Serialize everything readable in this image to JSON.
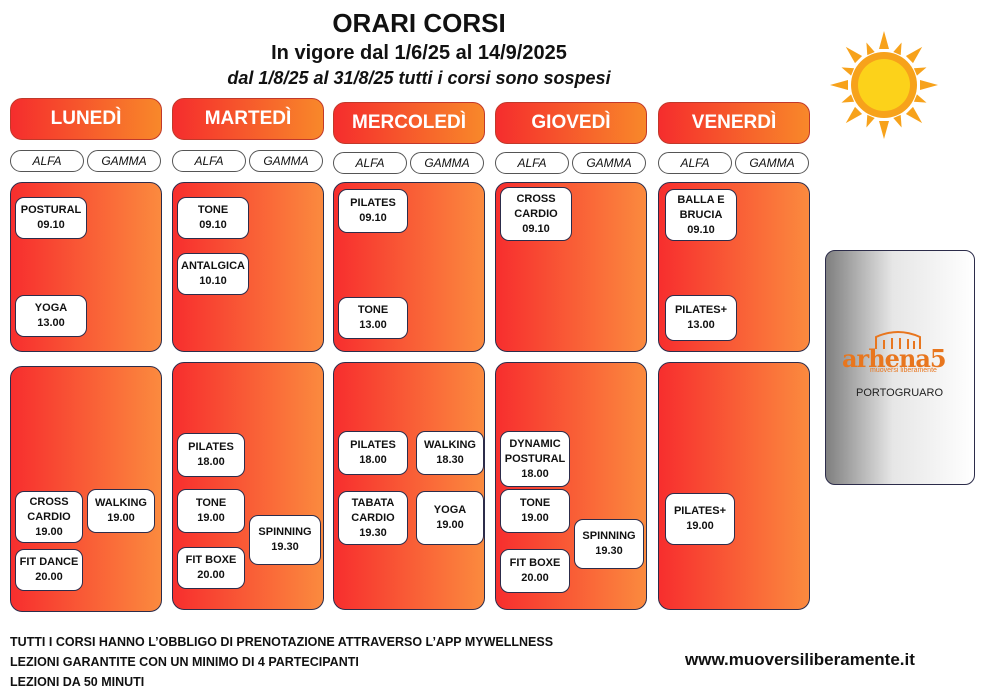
{
  "header": {
    "title": "ORARI CORSI",
    "validity": "In vigore dal 1/6/25 al 14/9/2025",
    "notice": "dal 1/8/25 al 31/8/25 tutti i corsi sono sospesi"
  },
  "rooms": [
    "ALFA",
    "GAMMA"
  ],
  "days": [
    {
      "name": "LUNEDÌ",
      "morning": [
        {
          "lines": [
            "POSTURAL",
            "09.10"
          ]
        },
        {
          "lines": [
            "YOGA",
            "13.00"
          ]
        }
      ],
      "evening": [
        {
          "lines": [
            "CROSS",
            "CARDIO",
            "19.00"
          ]
        },
        {
          "lines": [
            "WALKING",
            "19.00"
          ]
        },
        {
          "lines": [
            "FIT DANCE",
            "20.00"
          ]
        }
      ]
    },
    {
      "name": "MARTEDÌ",
      "morning": [
        {
          "lines": [
            "TONE",
            "09.10"
          ]
        },
        {
          "lines": [
            "ANTALGICA",
            "10.10"
          ]
        }
      ],
      "evening": [
        {
          "lines": [
            "PILATES",
            "18.00"
          ]
        },
        {
          "lines": [
            "TONE",
            "19.00"
          ]
        },
        {
          "lines": [
            "SPINNING",
            "19.30"
          ]
        },
        {
          "lines": [
            "FIT BOXE",
            "20.00"
          ]
        }
      ]
    },
    {
      "name": "MERCOLEDÌ",
      "morning": [
        {
          "lines": [
            "PILATES",
            "09.10"
          ]
        },
        {
          "lines": [
            "TONE",
            "13.00"
          ]
        }
      ],
      "evening": [
        {
          "lines": [
            "PILATES",
            "18.00"
          ]
        },
        {
          "lines": [
            "WALKING",
            "18.30"
          ]
        },
        {
          "lines": [
            "TABATA",
            "CARDIO",
            "19.30"
          ]
        },
        {
          "lines": [
            "YOGA",
            "19.00"
          ]
        }
      ]
    },
    {
      "name": "GIOVEDÌ",
      "morning": [
        {
          "lines": [
            "CROSS",
            "CARDIO",
            "09.10"
          ]
        }
      ],
      "evening": [
        {
          "lines": [
            "DYNAMIC",
            "POSTURAL",
            "18.00"
          ]
        },
        {
          "lines": [
            "TONE",
            "19.00"
          ]
        },
        {
          "lines": [
            "SPINNING",
            "19.30"
          ]
        },
        {
          "lines": [
            "FIT BOXE",
            "20.00"
          ]
        }
      ]
    },
    {
      "name": "VENERDÌ",
      "morning": [
        {
          "lines": [
            "BALLA E",
            "BRUCIA",
            "09.10"
          ]
        },
        {
          "lines": [
            "PILATES+",
            "13.00"
          ]
        }
      ],
      "evening": [
        {
          "lines": [
            "PILATES+",
            "19.00"
          ]
        }
      ]
    }
  ],
  "logo": {
    "brand": "arhena5",
    "tagline": "muoversi liberamente",
    "location": "PORTOGRUARO",
    "sun_icon": "sun-icon"
  },
  "footer": {
    "lines": [
      "TUTTI I CORSI HANNO L’OBBLIGO DI PRENOTAZIONE ATTRAVERSO L’APP MYWELLNESS",
      "LEZIONI GARANTITE CON UN MINIMO DI 4 PARTECIPANTI",
      "LEZIONI DA 50 MINUTI"
    ],
    "website": "www.muoversiliberamente.it"
  }
}
